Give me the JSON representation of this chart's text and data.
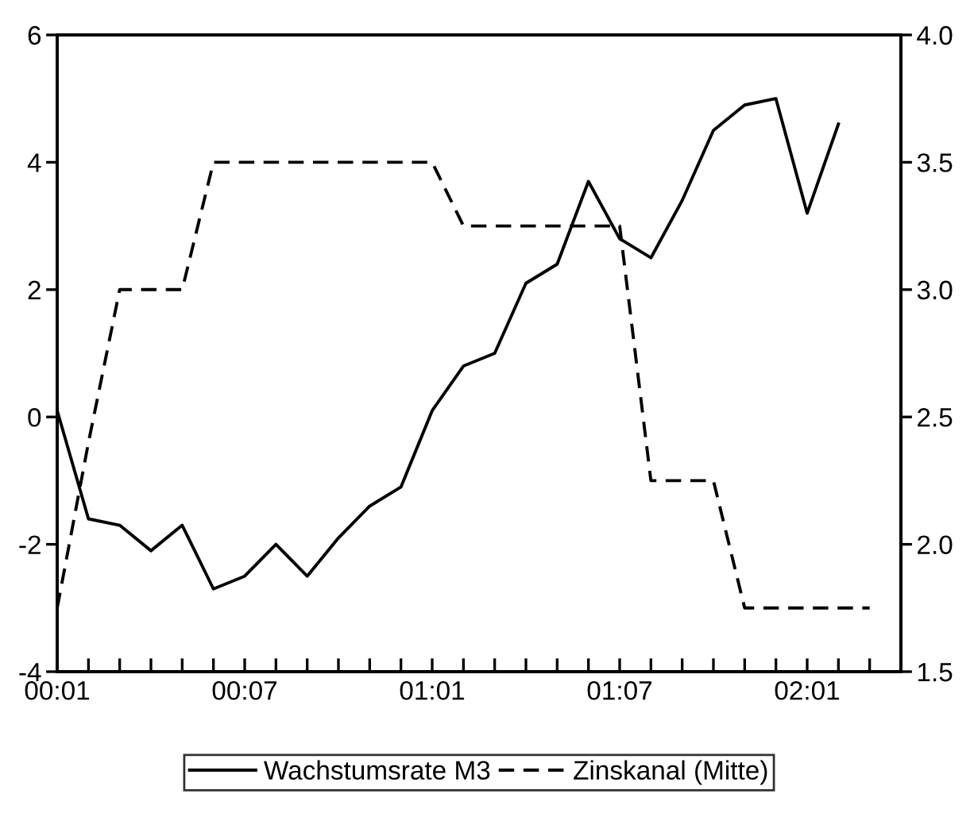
{
  "chart_data": {
    "type": "line",
    "categories": [
      "00:01",
      null,
      null,
      null,
      null,
      null,
      "00:07",
      null,
      null,
      null,
      null,
      null,
      "01:01",
      null,
      null,
      null,
      null,
      null,
      "01:07",
      null,
      null,
      null,
      null,
      null,
      "02:01",
      null,
      null,
      null
    ],
    "series": [
      {
        "name": "Wachstumsrate M3",
        "color": "#000000",
        "line_style": "solid",
        "values": [
          0.1,
          -1.6,
          -1.7,
          -2.1,
          -1.7,
          -2.7,
          -2.5,
          -2.0,
          -2.5,
          -1.9,
          -1.4,
          -1.1,
          0.1,
          0.8,
          1.0,
          2.1,
          2.4,
          3.7,
          2.8,
          2.5,
          3.4,
          4.5,
          4.9,
          5.0,
          3.2,
          4.6,
          null,
          null
        ]
      },
      {
        "name": "Zinskanal (Mitte)",
        "color": "#000000",
        "line_style": "dashed",
        "axis": "y2",
        "values": [
          1.75,
          2.4,
          3.0,
          3.0,
          3.0,
          3.5,
          3.5,
          3.5,
          3.5,
          3.5,
          3.5,
          3.5,
          3.5,
          3.25,
          3.25,
          3.25,
          3.25,
          3.25,
          3.25,
          2.25,
          2.25,
          2.25,
          1.75,
          1.75,
          1.75,
          1.75,
          1.75,
          null
        ]
      }
    ],
    "ylim": [
      -4,
      6
    ],
    "yticks": [
      -4,
      -2,
      0,
      2,
      4,
      6
    ],
    "y2lim": [
      1.5,
      4.0
    ],
    "y2ticks": [
      {
        "value": 1.5,
        "label": "1.5"
      },
      {
        "value": 2.0,
        "label": "2.0"
      },
      {
        "value": 2.5,
        "label": "2.5"
      },
      {
        "value": 3.0,
        "label": "3.0"
      },
      {
        "value": 3.5,
        "label": "3.5"
      },
      {
        "value": 4.0,
        "label": "4.0"
      }
    ],
    "grid": false,
    "legend": "bottom",
    "marker": "none"
  }
}
